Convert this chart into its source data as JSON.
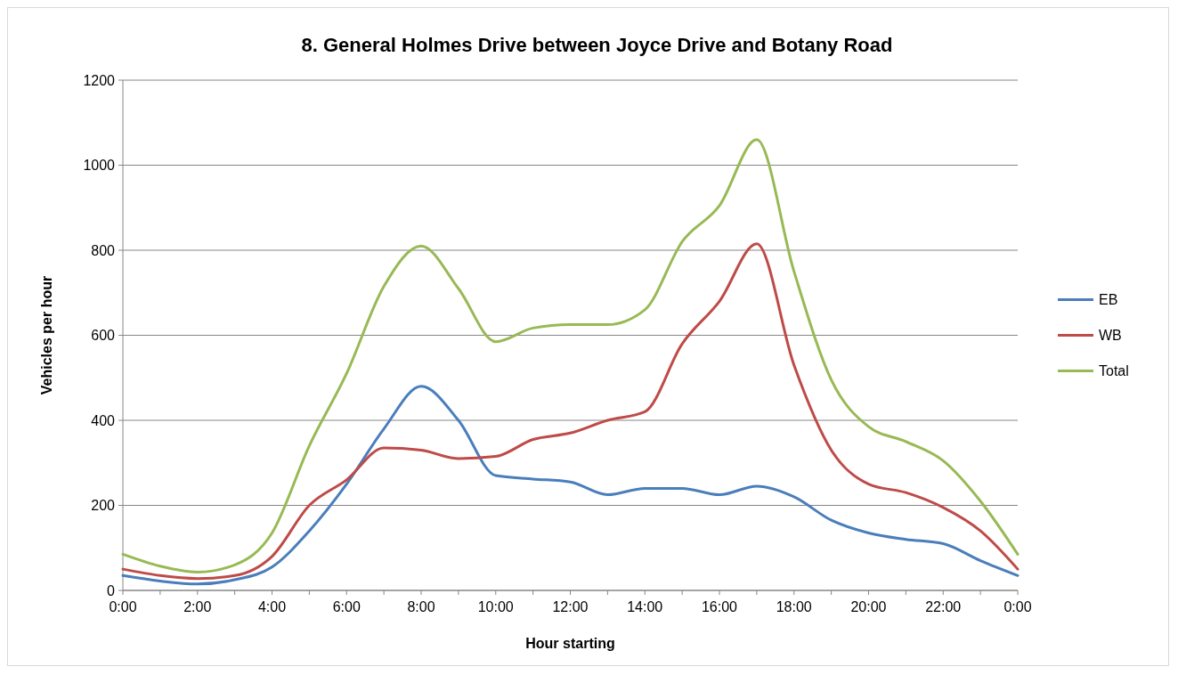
{
  "chart_data": {
    "type": "line",
    "title": "8. General Holmes Drive between Joyce Drive and Botany Road",
    "xlabel": "Hour starting",
    "ylabel": "Vehicles per hour",
    "categories": [
      "0:00",
      null,
      "2:00",
      null,
      "4:00",
      null,
      "6:00",
      null,
      "8:00",
      null,
      "10:00",
      null,
      "12:00",
      null,
      "14:00",
      null,
      "16:00",
      null,
      "18:00",
      null,
      "20:00",
      null,
      "22:00",
      null,
      "0:00"
    ],
    "series": [
      {
        "name": "EB",
        "color": "#4a7ebb",
        "values": [
          35,
          22,
          15,
          25,
          55,
          140,
          250,
          380,
          480,
          400,
          270,
          262,
          255,
          225,
          240,
          240,
          225,
          245,
          220,
          165,
          135,
          120,
          110,
          70,
          35
        ]
      },
      {
        "name": "WB",
        "color": "#be4b48",
        "values": [
          50,
          35,
          28,
          35,
          80,
          200,
          260,
          335,
          330,
          310,
          315,
          355,
          370,
          400,
          420,
          580,
          680,
          815,
          530,
          330,
          250,
          230,
          195,
          140,
          50
        ]
      },
      {
        "name": "Total",
        "color": "#98b954",
        "values": [
          85,
          57,
          43,
          60,
          135,
          340,
          510,
          715,
          810,
          710,
          585,
          617,
          625,
          625,
          660,
          820,
          905,
          1060,
          750,
          495,
          385,
          350,
          305,
          210,
          85
        ]
      }
    ],
    "ylim": [
      0,
      1200
    ],
    "yticks": [
      0,
      200,
      400,
      600,
      800,
      1000,
      1200
    ],
    "grid": "y",
    "legend": "right",
    "marker": "none",
    "line_style": "solid"
  }
}
